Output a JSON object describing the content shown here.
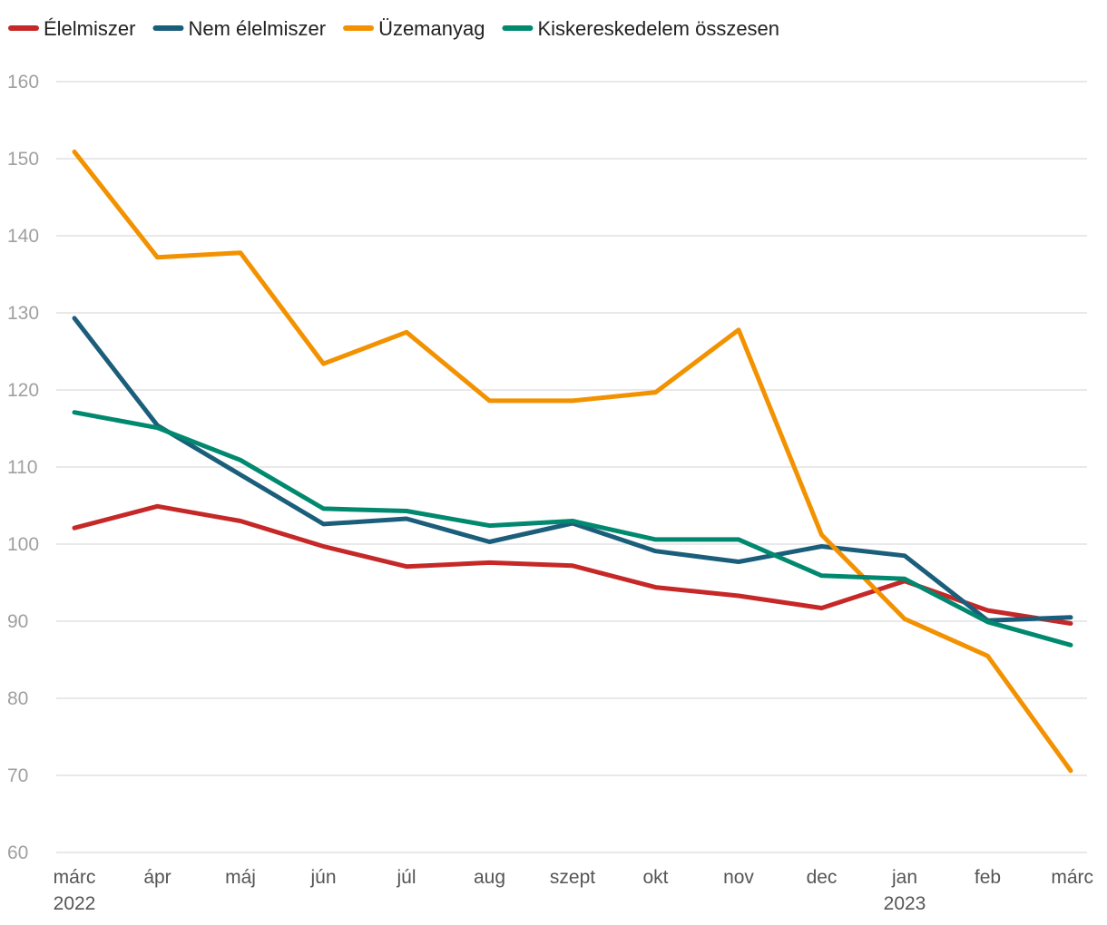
{
  "chart_data": {
    "type": "line",
    "title": "",
    "xlabel": "",
    "ylabel": "",
    "ylim": [
      60,
      160
    ],
    "yticks": [
      60,
      70,
      80,
      90,
      100,
      110,
      120,
      130,
      140,
      150,
      160
    ],
    "grid": true,
    "legend_position": "top-left",
    "categories": [
      "márc",
      "ápr",
      "máj",
      "jún",
      "júl",
      "aug",
      "szept",
      "okt",
      "nov",
      "dec",
      "jan",
      "feb",
      "márc"
    ],
    "year_labels": [
      {
        "index": 0,
        "label": "2022"
      },
      {
        "index": 10,
        "label": "2023"
      }
    ],
    "series": [
      {
        "name": "Élelmiszer",
        "color": "#c62828",
        "values": [
          102.1,
          104.9,
          103.0,
          99.7,
          97.1,
          97.6,
          97.2,
          94.4,
          93.3,
          91.7,
          95.2,
          91.4,
          89.7
        ]
      },
      {
        "name": "Nem élelmiszer",
        "color": "#1b5e7b",
        "values": [
          129.3,
          115.4,
          109.0,
          102.6,
          103.3,
          100.3,
          102.7,
          99.1,
          97.7,
          99.7,
          98.5,
          90.1,
          90.5
        ]
      },
      {
        "name": "Üzemanyag",
        "color": "#f39200",
        "values": [
          150.9,
          137.2,
          137.8,
          123.4,
          127.5,
          118.6,
          118.6,
          119.7,
          127.8,
          101.2,
          90.3,
          85.5,
          70.6
        ]
      },
      {
        "name": "Kiskereskedelem összesen",
        "color": "#00896f",
        "values": [
          117.1,
          115.1,
          110.9,
          104.6,
          104.3,
          102.4,
          103.0,
          100.6,
          100.6,
          95.9,
          95.5,
          89.9,
          86.9
        ]
      }
    ]
  }
}
